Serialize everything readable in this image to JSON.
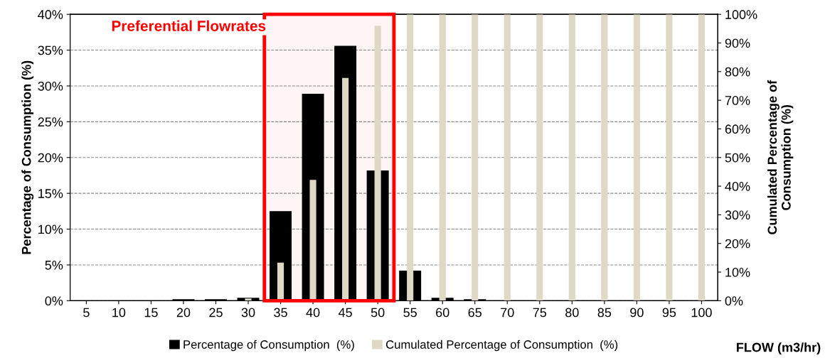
{
  "chart_data": {
    "type": "bar",
    "categories": [
      "5",
      "10",
      "15",
      "20",
      "25",
      "30",
      "35",
      "40",
      "45",
      "50",
      "55",
      "60",
      "65",
      "70",
      "75",
      "80",
      "85",
      "90",
      "95",
      "100"
    ],
    "series": [
      {
        "name": "Percentage of Consumption  (%)",
        "color": "#000000",
        "values": [
          0,
          0,
          0,
          0.2,
          0.2,
          0.4,
          12.5,
          28.9,
          35.6,
          18.2,
          4.2,
          0.4,
          0.2,
          0,
          0,
          0,
          0,
          0,
          0,
          0
        ]
      },
      {
        "name": "Cumulated Percentage of Consumption  (%)",
        "color": "#ddd9c4",
        "axis": "y2",
        "values": [
          0,
          0,
          0,
          null,
          null,
          0.8,
          13.3,
          42.2,
          77.8,
          96,
          100,
          100,
          100,
          100,
          100,
          100,
          100,
          100,
          100,
          100
        ]
      }
    ],
    "xlabel": "FLOW (m3/hr)",
    "ylabel": "Percentage of Consumption (%)",
    "y2label": "Cumulated Percentage of\nConsumption (%)",
    "ylim": [
      0,
      40
    ],
    "yticks": [
      {
        "value": 0,
        "label": "0%"
      },
      {
        "value": 5,
        "label": "5%"
      },
      {
        "value": 10,
        "label": "10%"
      },
      {
        "value": 15,
        "label": "15%"
      },
      {
        "value": 20,
        "label": "20%"
      },
      {
        "value": 25,
        "label": "25%"
      },
      {
        "value": 30,
        "label": "30%"
      },
      {
        "value": 35,
        "label": "35%"
      },
      {
        "value": 40,
        "label": "40%"
      }
    ],
    "y2lim": [
      0,
      100
    ],
    "y2ticks": [
      {
        "value": 0,
        "label": "0%"
      },
      {
        "value": 10,
        "label": "10%"
      },
      {
        "value": 20,
        "label": "20%"
      },
      {
        "value": 30,
        "label": "30%"
      },
      {
        "value": 40,
        "label": "40%"
      },
      {
        "value": 50,
        "label": "50%"
      },
      {
        "value": 60,
        "label": "60%"
      },
      {
        "value": 70,
        "label": "70%"
      },
      {
        "value": 80,
        "label": "80%"
      },
      {
        "value": 90,
        "label": "90%"
      },
      {
        "value": 100,
        "label": "100%"
      }
    ],
    "bands": [
      {
        "axis": "x",
        "from": "35",
        "to": "50",
        "label": "Preferential Flowrates",
        "color": "#ff0000"
      }
    ],
    "grid": "y",
    "legend": "bottom"
  }
}
